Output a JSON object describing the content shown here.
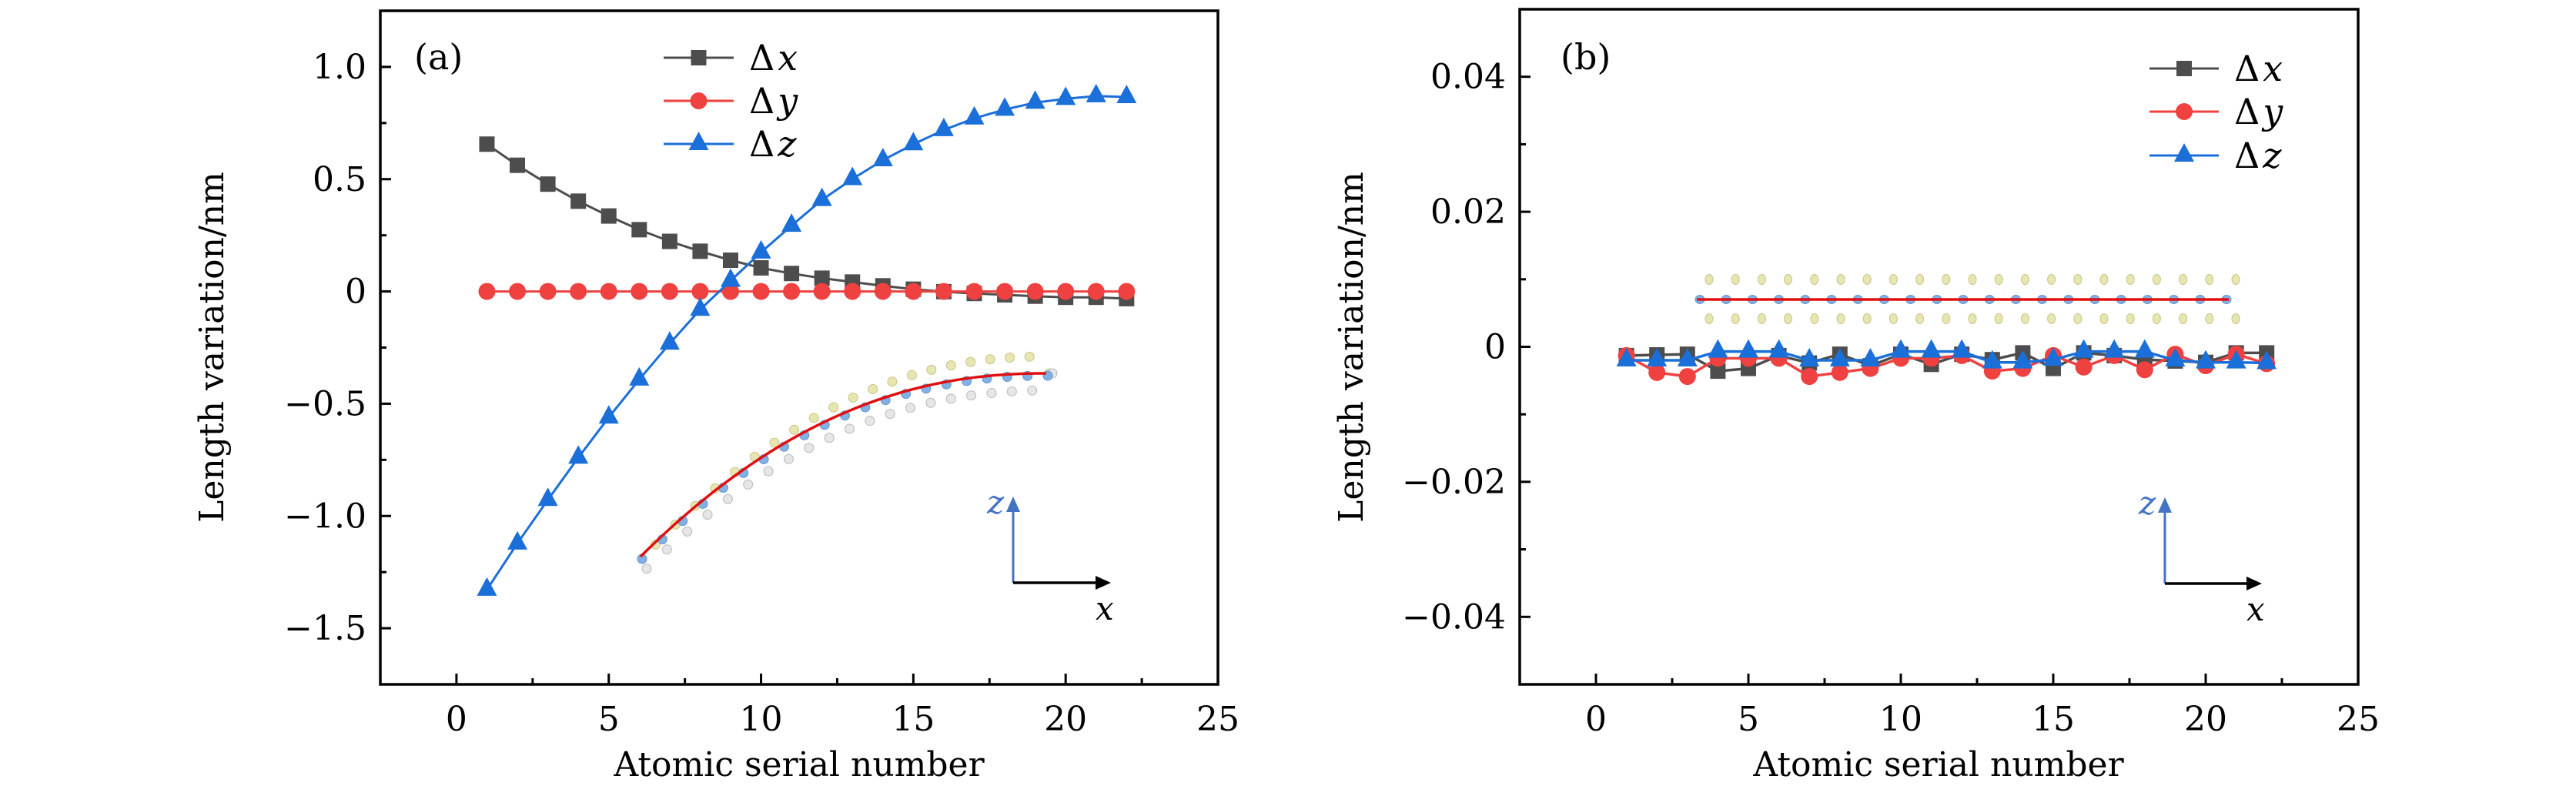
{
  "figure": {
    "colors": {
      "dx": "#4d4d4d",
      "dy": "#ee4140",
      "dz": "#1a6fd8",
      "coord_z": "#4472c4",
      "coord_x": "#000000",
      "inset_curve": "#e01010",
      "atom_yellow": "#e8e6b0",
      "atom_blue": "#7fb0e6",
      "atom_white": "#e6e6e6"
    }
  },
  "chart_data": [
    {
      "type": "line",
      "panel_label": "(a)",
      "title": "",
      "xlabel": "Atomic serial number",
      "ylabel": "Length variation/nm",
      "xlim": [
        -2.5,
        25
      ],
      "ylim": [
        -1.75,
        1.25
      ],
      "xticks": [
        0,
        5,
        10,
        15,
        20,
        25
      ],
      "xtick_labels": [
        "0",
        "5",
        "10",
        "15",
        "20",
        "25"
      ],
      "yticks": [
        1.0,
        0.5,
        0,
        -0.5,
        -1.0,
        -1.5
      ],
      "ytick_labels": [
        "1.0",
        "0.5",
        "0",
        "−0.5",
        "−1.0",
        "−1.5"
      ],
      "grid": false,
      "legend_position": "top-center",
      "x": [
        1,
        2,
        3,
        4,
        5,
        6,
        7,
        8,
        9,
        10,
        11,
        12,
        13,
        14,
        15,
        16,
        17,
        18,
        19,
        20,
        21,
        22
      ],
      "series": [
        {
          "key": "dx",
          "name": "Δx",
          "delta": "Δ",
          "var": "x",
          "marker": "square",
          "values": [
            0.656,
            0.562,
            0.478,
            0.402,
            0.336,
            0.275,
            0.223,
            0.179,
            0.139,
            0.105,
            0.08,
            0.059,
            0.042,
            0.025,
            0.01,
            -0.001,
            -0.009,
            -0.015,
            -0.021,
            -0.026,
            -0.026,
            -0.032
          ]
        },
        {
          "key": "dy",
          "name": "Δy",
          "delta": "Δ",
          "var": "y",
          "marker": "circle",
          "values": [
            0,
            0,
            0,
            0,
            0,
            0,
            0,
            0,
            0,
            0,
            0,
            0,
            0,
            0,
            0,
            0,
            0,
            0,
            0,
            0,
            0,
            0
          ]
        },
        {
          "key": "dz",
          "name": "Δz",
          "delta": "Δ",
          "var": "z",
          "marker": "triangle",
          "values": [
            -1.328,
            -1.122,
            -0.928,
            -0.74,
            -0.561,
            -0.392,
            -0.232,
            -0.081,
            0.048,
            0.174,
            0.293,
            0.408,
            0.501,
            0.585,
            0.656,
            0.719,
            0.771,
            0.81,
            0.841,
            0.858,
            0.87,
            0.866
          ]
        }
      ],
      "inset": {
        "description": "bent atomic chain structure",
        "shape": "curved"
      },
      "coordinate_axes": {
        "vertical_label": "z",
        "horizontal_label": "x"
      }
    },
    {
      "type": "line",
      "panel_label": "(b)",
      "title": "",
      "xlabel": "Atomic serial number",
      "ylabel": "Length variation/nm",
      "xlim": [
        -2.5,
        25
      ],
      "ylim": [
        -0.05,
        0.05
      ],
      "xticks": [
        0,
        5,
        10,
        15,
        20,
        25
      ],
      "xtick_labels": [
        "0",
        "5",
        "10",
        "15",
        "20",
        "25"
      ],
      "yticks": [
        0.04,
        0.02,
        0,
        -0.02,
        -0.04
      ],
      "ytick_labels": [
        "0.04",
        "0.02",
        "0",
        "−0.02",
        "−0.04"
      ],
      "grid": false,
      "legend_position": "top-right",
      "x": [
        1,
        2,
        3,
        4,
        5,
        6,
        7,
        8,
        9,
        10,
        11,
        12,
        13,
        14,
        15,
        16,
        17,
        18,
        19,
        20,
        21,
        22
      ],
      "series": [
        {
          "key": "dx",
          "name": "Δx",
          "delta": "Δ",
          "var": "x",
          "marker": "square",
          "values": [
            -0.0013,
            -0.0012,
            -0.0011,
            -0.0036,
            -0.0032,
            -0.0013,
            -0.0024,
            -0.0011,
            -0.0028,
            -0.0011,
            -0.0026,
            -0.0011,
            -0.0019,
            -0.0009,
            -0.0032,
            -0.0009,
            -0.0013,
            -0.0019,
            -0.0021,
            -0.0023,
            -0.0009,
            -0.0009
          ]
        },
        {
          "key": "dy",
          "name": "Δy",
          "delta": "Δ",
          "var": "y",
          "marker": "circle",
          "values": [
            -0.0013,
            -0.0038,
            -0.0044,
            -0.0017,
            -0.0017,
            -0.0017,
            -0.0044,
            -0.0038,
            -0.0032,
            -0.0017,
            -0.0017,
            -0.0013,
            -0.0036,
            -0.0032,
            -0.0013,
            -0.003,
            -0.0013,
            -0.0034,
            -0.0011,
            -0.0028,
            -0.0011,
            -0.0025
          ]
        },
        {
          "key": "dz",
          "name": "Δz",
          "delta": "Δ",
          "var": "z",
          "marker": "triangle",
          "values": [
            -0.002,
            -0.002,
            -0.002,
            -0.0007,
            -0.0007,
            -0.0007,
            -0.002,
            -0.002,
            -0.002,
            -0.0007,
            -0.0007,
            -0.0007,
            -0.0023,
            -0.0023,
            -0.0019,
            -0.0007,
            -0.0007,
            -0.0007,
            -0.002,
            -0.0023,
            -0.0023,
            -0.0024
          ]
        }
      ],
      "inset": {
        "description": "flat atomic chain structure",
        "shape": "flat"
      },
      "coordinate_axes": {
        "vertical_label": "z",
        "horizontal_label": "x"
      }
    }
  ]
}
